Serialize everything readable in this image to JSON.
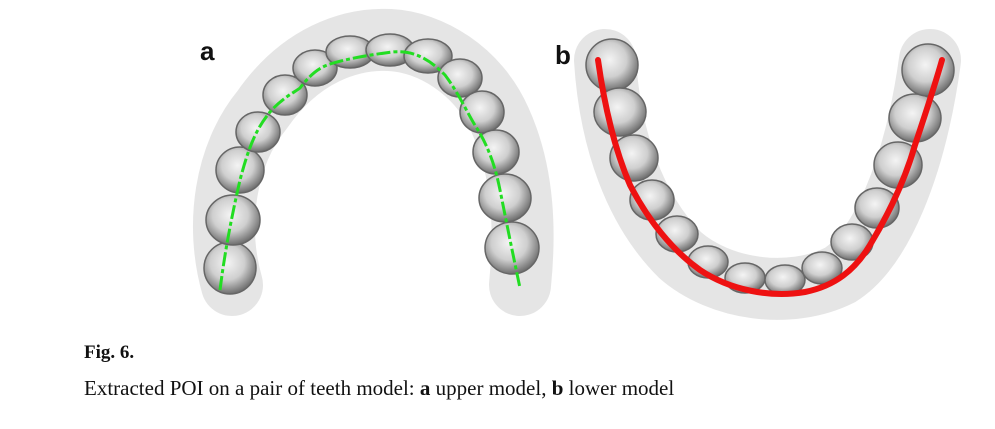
{
  "panels": [
    {
      "label": "a",
      "line_color": "#22dd22"
    },
    {
      "label": "b",
      "line_color": "#ee1111"
    }
  ],
  "caption": {
    "title": "Fig. 6.",
    "text_prefix": "Extracted POI on a pair of teeth model: ",
    "a_label": "a",
    "a_text": " upper model, ",
    "b_label": "b",
    "b_text": " lower model"
  }
}
